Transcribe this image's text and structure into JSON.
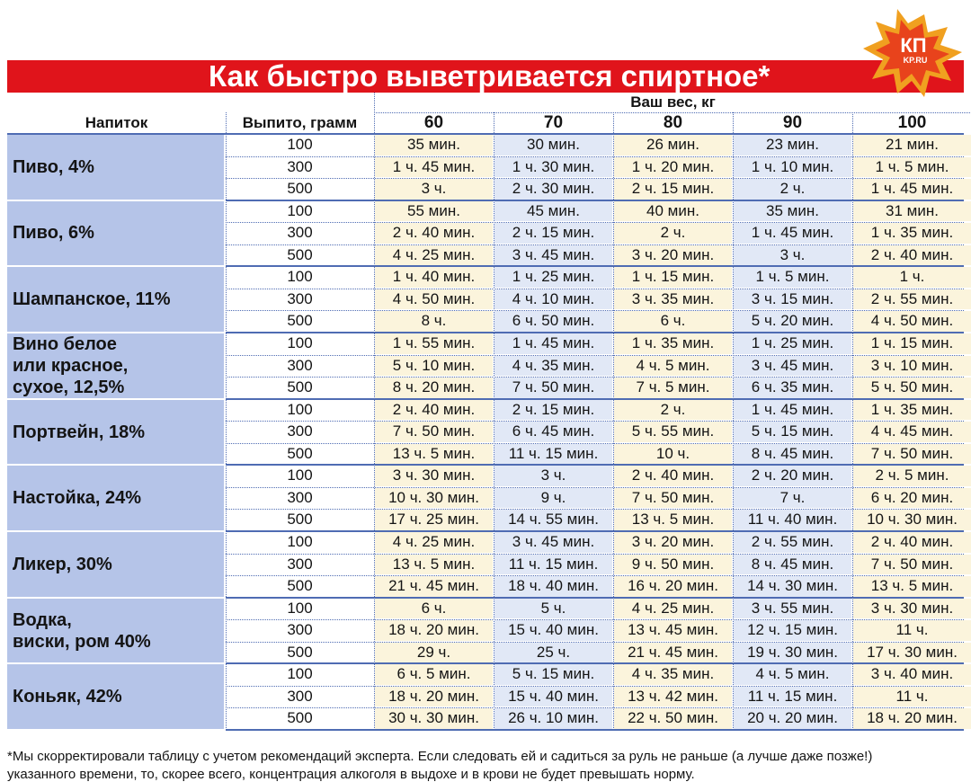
{
  "title": "Как быстро выветривается спиртное*",
  "logo_text": "КП",
  "logo_subtext": "KP.RU",
  "header": {
    "weight_label": "Ваш вес, кг",
    "drink_col": "Напиток",
    "amount_col": "Выпито, грамм",
    "weights": [
      "60",
      "70",
      "80",
      "90",
      "100"
    ]
  },
  "amounts": [
    "100",
    "300",
    "500"
  ],
  "drinks": [
    {
      "name": "Пиво, 4%",
      "rows": [
        [
          "35 мин.",
          "30 мин.",
          "26 мин.",
          "23 мин.",
          "21 мин."
        ],
        [
          "1 ч. 45 мин.",
          "1 ч. 30 мин.",
          "1 ч. 20 мин.",
          "1 ч. 10 мин.",
          "1 ч. 5 мин."
        ],
        [
          "3 ч.",
          "2 ч. 30 мин.",
          "2 ч. 15 мин.",
          "2 ч.",
          "1 ч. 45 мин."
        ]
      ]
    },
    {
      "name": "Пиво, 6%",
      "rows": [
        [
          "55 мин.",
          "45 мин.",
          "40 мин.",
          "35 мин.",
          "31 мин."
        ],
        [
          "2 ч. 40 мин.",
          "2 ч. 15 мин.",
          "2 ч.",
          "1 ч. 45 мин.",
          "1 ч. 35 мин."
        ],
        [
          "4 ч. 25 мин.",
          "3 ч. 45 мин.",
          "3 ч. 20 мин.",
          "3 ч.",
          "2 ч. 40 мин."
        ]
      ]
    },
    {
      "name": "Шампанское, 11%",
      "rows": [
        [
          "1 ч. 40 мин.",
          "1 ч. 25 мин.",
          "1 ч. 15 мин.",
          "1 ч. 5 мин.",
          "1 ч."
        ],
        [
          "4 ч. 50 мин.",
          "4 ч. 10 мин.",
          "3 ч. 35 мин.",
          "3 ч. 15 мин.",
          "2 ч. 55 мин."
        ],
        [
          "8 ч.",
          "6 ч. 50 мин.",
          "6 ч.",
          "5 ч. 20 мин.",
          "4 ч. 50 мин."
        ]
      ]
    },
    {
      "name": "Вино белое\nили красное,\nсухое, 12,5%",
      "rows": [
        [
          "1 ч. 55 мин.",
          "1 ч. 45 мин.",
          "1 ч. 35 мин.",
          "1 ч. 25 мин.",
          "1 ч. 15 мин."
        ],
        [
          "5 ч. 10 мин.",
          "4 ч. 35 мин.",
          "4 ч. 5 мин.",
          "3 ч. 45 мин.",
          "3 ч. 10 мин."
        ],
        [
          "8 ч. 20 мин.",
          "7 ч. 50 мин.",
          "7 ч. 5 мин.",
          "6 ч. 35 мин.",
          "5 ч. 50 мин."
        ]
      ]
    },
    {
      "name": "Портвейн, 18%",
      "rows": [
        [
          "2 ч. 40 мин.",
          "2 ч. 15 мин.",
          "2 ч.",
          "1 ч. 45 мин.",
          "1 ч. 35 мин."
        ],
        [
          "7 ч. 50 мин.",
          "6 ч. 45 мин.",
          "5 ч. 55 мин.",
          "5 ч. 15 мин.",
          "4 ч. 45 мин."
        ],
        [
          "13 ч. 5 мин.",
          "11 ч. 15 мин.",
          "10 ч.",
          "8 ч. 45 мин.",
          "7 ч. 50 мин."
        ]
      ]
    },
    {
      "name": "Настойка, 24%",
      "rows": [
        [
          "3 ч. 30 мин.",
          "3 ч.",
          "2 ч. 40 мин.",
          "2 ч. 20 мин.",
          "2 ч. 5 мин."
        ],
        [
          "10 ч. 30 мин.",
          "9 ч.",
          "7 ч. 50 мин.",
          "7 ч.",
          "6 ч. 20 мин."
        ],
        [
          "17 ч. 25 мин.",
          "14 ч. 55 мин.",
          "13 ч. 5 мин.",
          "11 ч. 40 мин.",
          "10 ч. 30 мин."
        ]
      ]
    },
    {
      "name": "Ликер, 30%",
      "rows": [
        [
          "4 ч. 25 мин.",
          "3 ч. 45 мин.",
          "3 ч. 20 мин.",
          "2 ч. 55 мин.",
          "2 ч. 40 мин."
        ],
        [
          "13 ч. 5 мин.",
          "11 ч. 15 мин.",
          "9 ч. 50 мин.",
          "8 ч. 45 мин.",
          "7 ч. 50 мин."
        ],
        [
          "21 ч. 45 мин.",
          "18 ч. 40 мин.",
          "16 ч. 20 мин.",
          "14 ч. 30 мин.",
          "13 ч. 5 мин."
        ]
      ]
    },
    {
      "name": "Водка,\nвиски, ром 40%",
      "rows": [
        [
          "6 ч.",
          "5 ч.",
          "4 ч. 25 мин.",
          "3 ч. 55 мин.",
          "3 ч. 30 мин."
        ],
        [
          "18 ч. 20 мин.",
          "15 ч. 40 мин.",
          "13 ч. 45 мин.",
          "12 ч. 15 мин.",
          "11 ч."
        ],
        [
          "29 ч.",
          "25 ч.",
          "21 ч. 45 мин.",
          "19 ч. 30 мин.",
          "17 ч. 30 мин."
        ]
      ]
    },
    {
      "name": "Коньяк, 42%",
      "rows": [
        [
          "6 ч. 5 мин.",
          "5 ч. 15 мин.",
          "4 ч. 35 мин.",
          "4 ч. 5 мин.",
          "3 ч. 40 мин."
        ],
        [
          "18 ч. 20 мин.",
          "15 ч. 40 мин.",
          "13 ч. 42 мин.",
          "11 ч. 15 мин.",
          "11 ч."
        ],
        [
          "30 ч. 30 мин.",
          "26 ч. 10 мин.",
          "22 ч. 50 мин.",
          "20 ч. 20 мин.",
          "18 ч. 20 мин."
        ]
      ]
    }
  ],
  "footnote": "*Мы скорректировали таблицу с учетом рекомендаций эксперта. Если следовать ей и садиться за руль не раньше (а лучше даже позже!)\nуказанного времени, то, скорее всего, концентрация алкоголя в выдохе и в крови не будет превышать норму.",
  "colors": {
    "title_bg": "#e0141b",
    "drink_bg": "#b5c4e8",
    "cell_cream": "#fbf4dc",
    "cell_blue": "#e1e8f6",
    "line_blue": "#4f6cb3"
  }
}
